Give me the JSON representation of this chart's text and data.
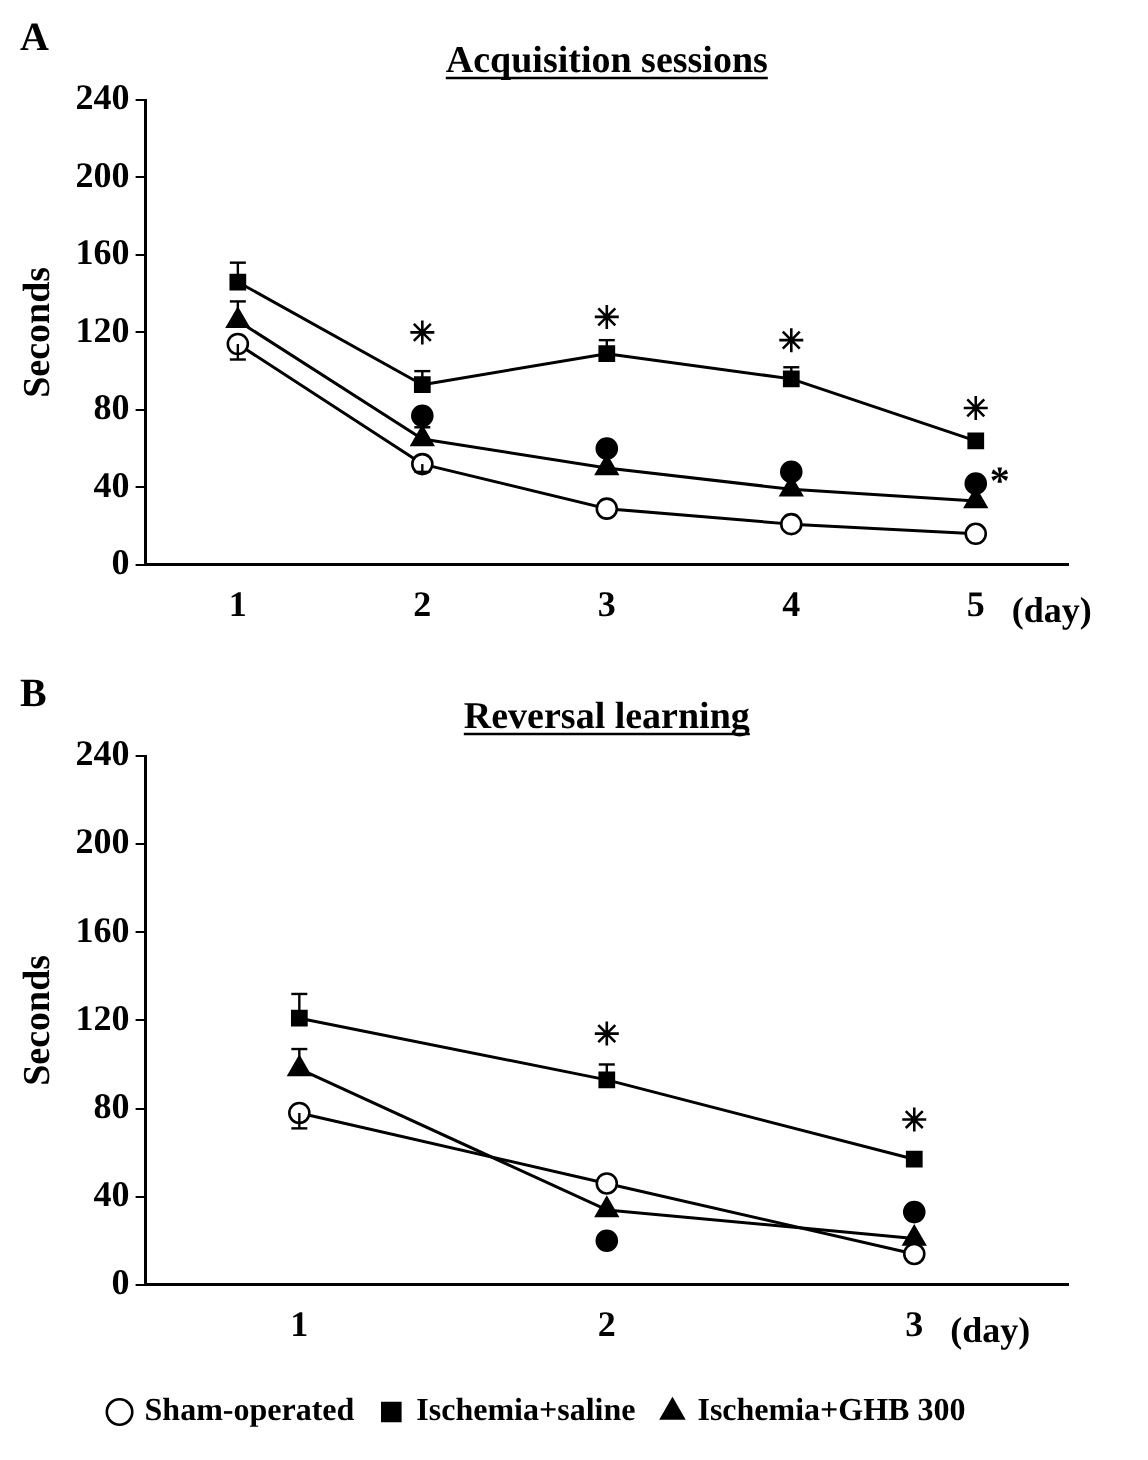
{
  "chart_data": [
    {
      "type": "line",
      "title": "Acquisition sessions",
      "xlabel": "(day)",
      "ylabel": "Seconds",
      "categories": [
        "1",
        "2",
        "3",
        "4",
        "5"
      ],
      "ylim": [
        0,
        240
      ],
      "yticks": [
        0,
        40,
        80,
        120,
        160,
        200,
        240
      ],
      "grid": false,
      "legend": false,
      "series": [
        {
          "color": "#000000",
          "marker": "circle",
          "values": [
            114,
            52,
            29,
            21,
            16
          ],
          "errors": [
            [
              106,
              114
            ],
            [
              48,
              52
            ],
            null,
            null,
            null
          ]
        },
        {
          "color": "#000000",
          "marker": "square",
          "values": [
            146,
            93,
            109,
            96,
            64
          ],
          "errors": [
            [
              146,
              156
            ],
            [
              93,
              100
            ],
            [
              109,
              116
            ],
            [
              96,
              102
            ],
            null
          ]
        },
        {
          "color": "#000000",
          "marker": "triangle",
          "values": [
            126,
            65,
            50,
            39,
            33
          ],
          "errors": [
            [
              126,
              136
            ],
            [
              65,
              71
            ],
            null,
            null,
            null
          ]
        },
        {
          "type": "scatter",
          "color": "#000000",
          "marker": "cross",
          "values": [
            null,
            120,
            128,
            116,
            81
          ]
        },
        {
          "type": "scatter",
          "color": "#000000",
          "marker": "circle",
          "values": [
            null,
            77,
            60,
            48,
            42
          ],
          "value_labels": [
            null,
            null,
            null,
            null,
            "*"
          ]
        }
      ],
      "annotations": [
        "A"
      ]
    },
    {
      "type": "line",
      "title": "Reversal learning",
      "xlabel": "(day)",
      "ylabel": "Seconds",
      "categories": [
        "1",
        "2",
        "3"
      ],
      "ylim": [
        0,
        240
      ],
      "yticks": [
        0,
        40,
        80,
        120,
        160,
        200,
        240
      ],
      "grid": false,
      "legend": "bottom",
      "series": [
        {
          "name": "Sham-operated",
          "color": "#000000",
          "marker": "circle",
          "values": [
            78,
            46,
            14
          ],
          "errors": [
            [
              71,
              78
            ],
            null,
            null
          ]
        },
        {
          "name": "Ischemia+saline",
          "color": "#000000",
          "marker": "square",
          "values": [
            121,
            93,
            57
          ],
          "errors": [
            [
              121,
              132
            ],
            [
              93,
              100
            ],
            null
          ]
        },
        {
          "name": "Ischemia+GHB 300",
          "color": "#000000",
          "marker": "triangle",
          "values": [
            98,
            34,
            21
          ],
          "errors": [
            [
              98,
              107
            ],
            null,
            null
          ]
        },
        {
          "type": "scatter",
          "color": "#000000",
          "marker": "cross",
          "values": [
            null,
            114,
            75
          ]
        },
        {
          "type": "scatter",
          "color": "#000000",
          "marker": "circle",
          "values": [
            null,
            20,
            33
          ]
        }
      ],
      "annotations": [
        "B"
      ]
    }
  ]
}
